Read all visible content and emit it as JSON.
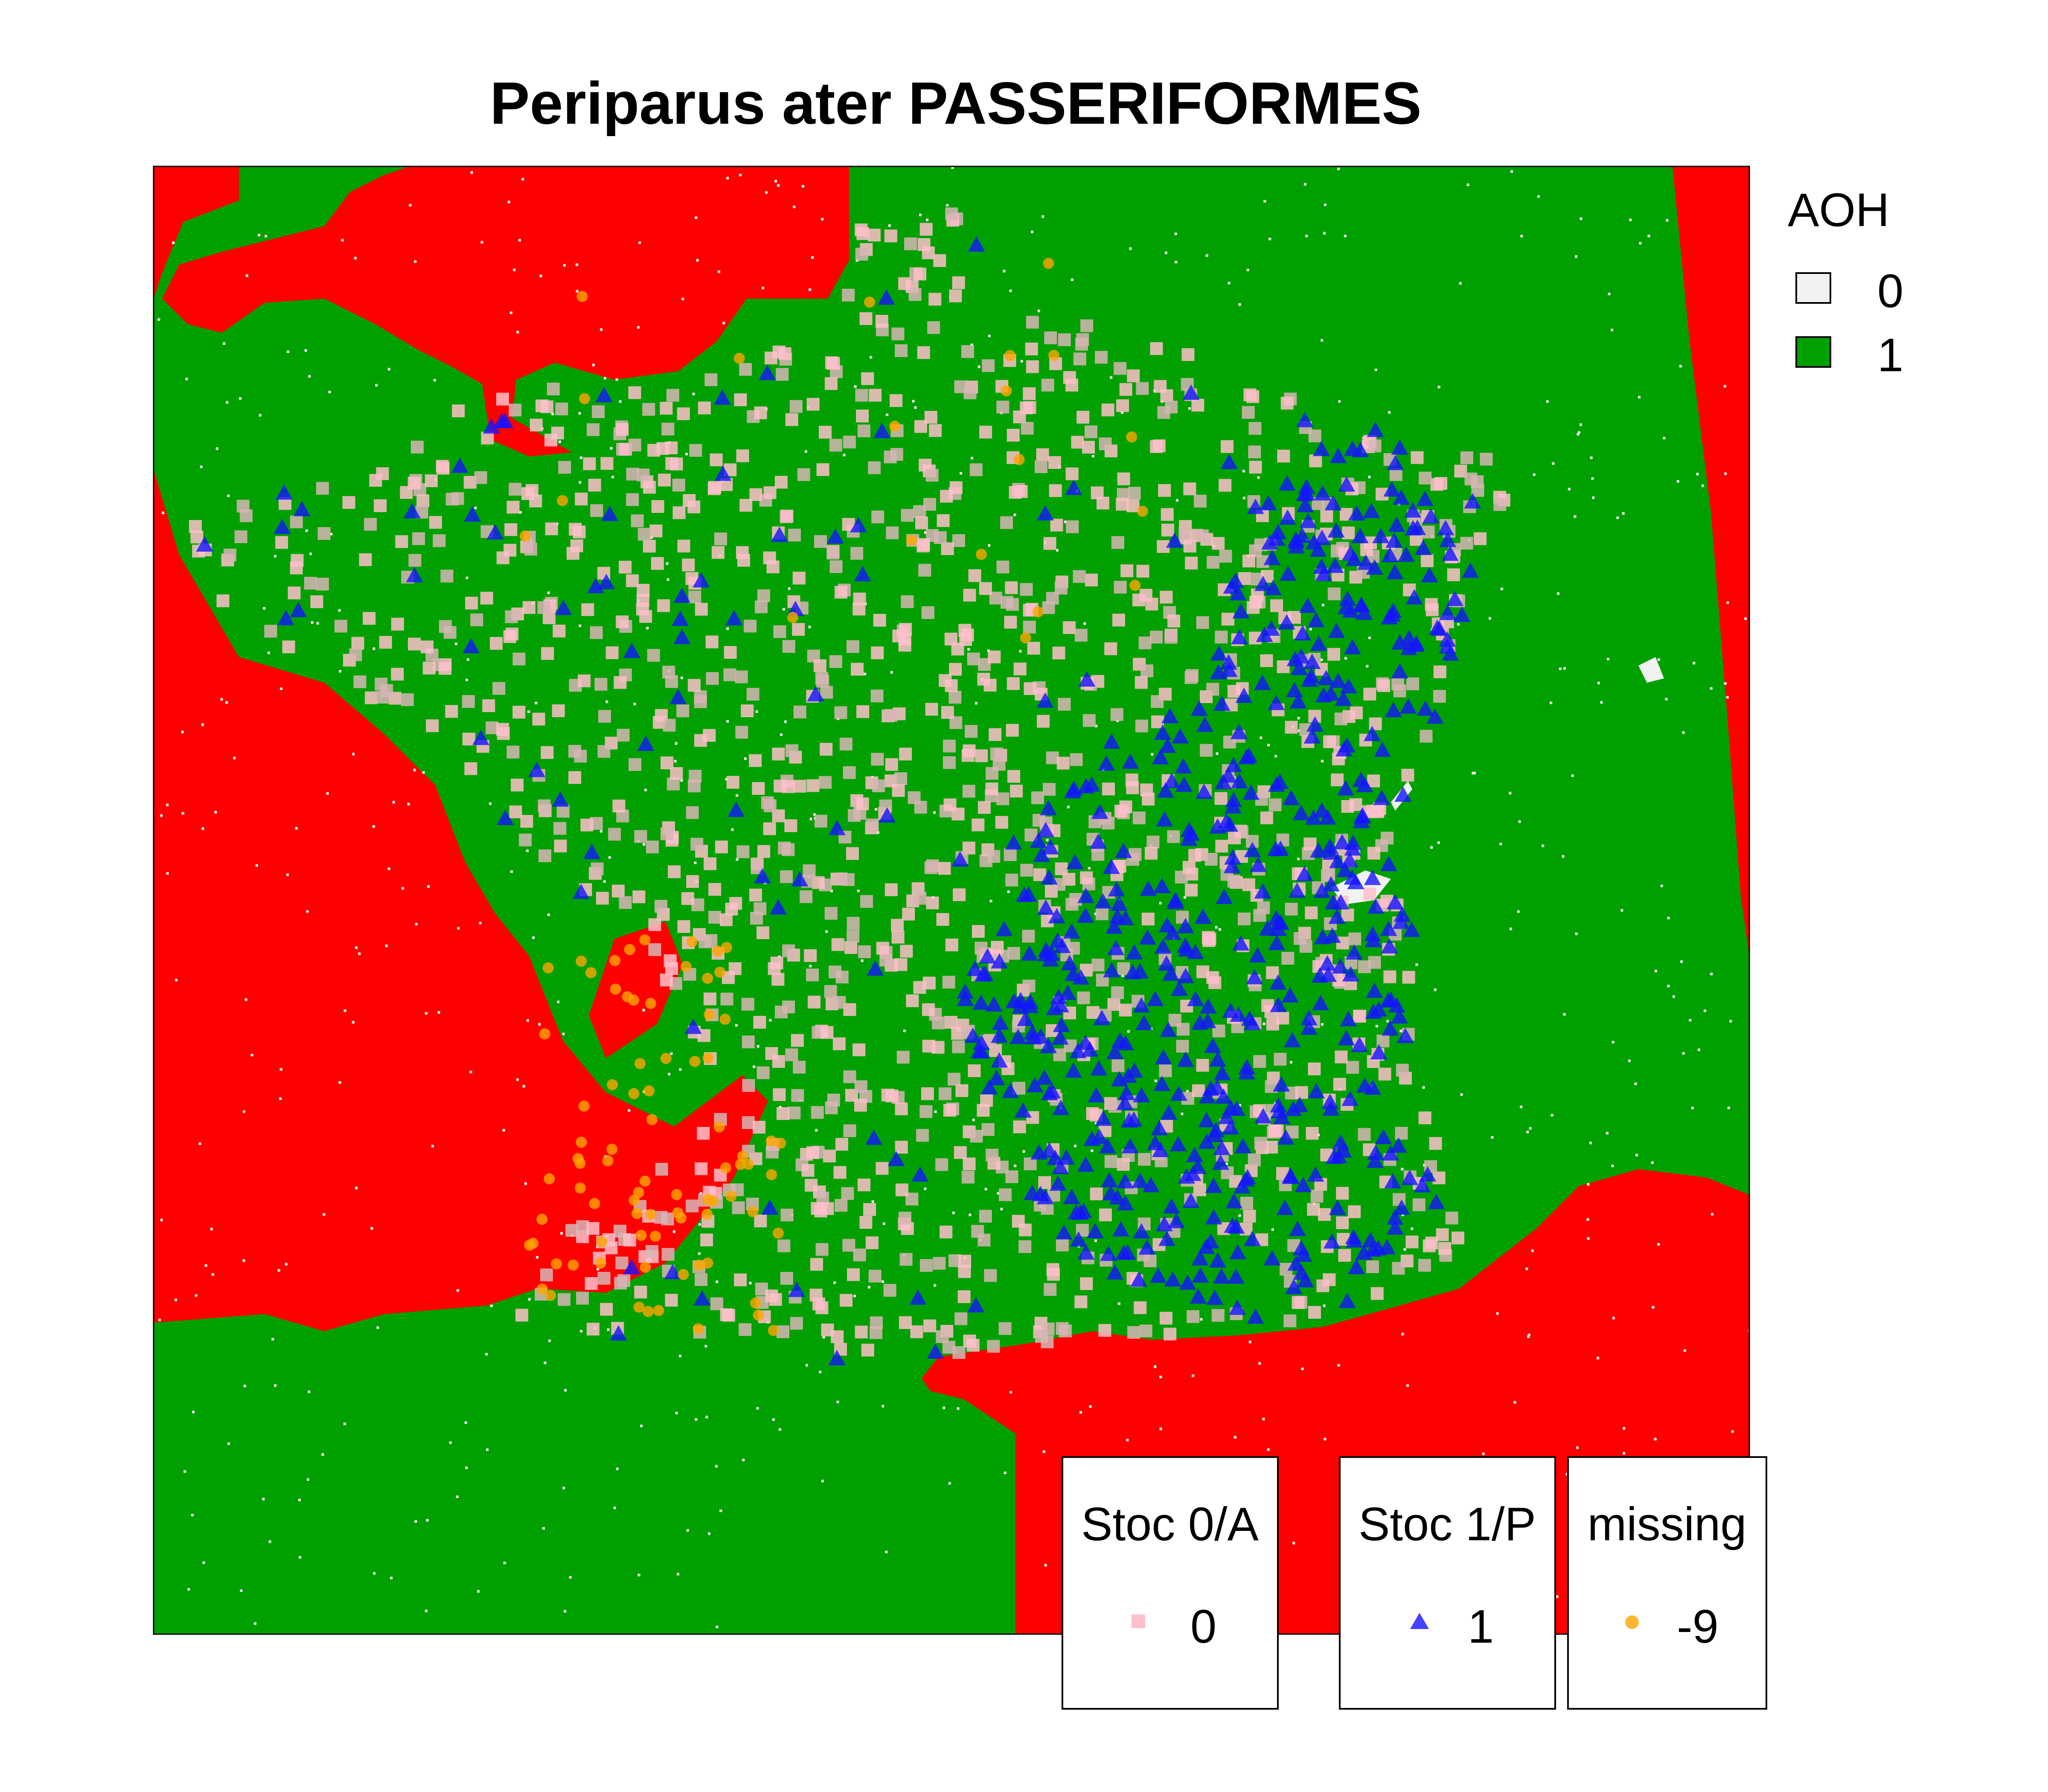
{
  "title": "Periparus ater PASSERIFORMES",
  "aoh_legend": {
    "title": "AOH",
    "items": [
      {
        "label": "0",
        "color": "#f2f2f2"
      },
      {
        "label": "1",
        "color": "#00a000"
      }
    ]
  },
  "colors": {
    "sea": "#ff0000",
    "land": "#00a000",
    "pseudo_absence": "#ffc0cb",
    "pseudo_absence_other": "#d7b5b5",
    "presence": "#1414ff",
    "missing": "#ffa500"
  },
  "point_legends": [
    {
      "title": "Stoc 0/A",
      "label": "0",
      "symbol": "square",
      "color": "#ffc0cb"
    },
    {
      "title": "Stoc 1/P",
      "label": "1",
      "symbol": "triangle",
      "color": "#1414ff"
    },
    {
      "title": "missing",
      "label": "-9",
      "symbol": "circle",
      "color": "#ffa500"
    }
  ]
}
